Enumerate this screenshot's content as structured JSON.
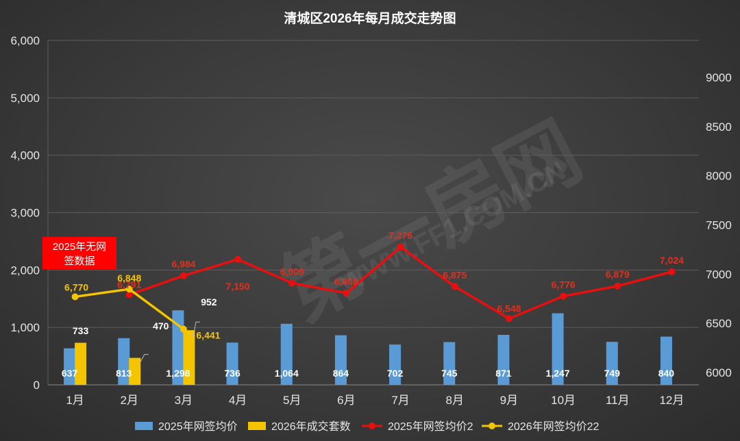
{
  "chart_data": {
    "type": "bar",
    "title": "清城区2026年每月成交走势图",
    "categories": [
      "1月",
      "2月",
      "3月",
      "4月",
      "5月",
      "6月",
      "7月",
      "8月",
      "9月",
      "10月",
      "11月",
      "12月"
    ],
    "left_axis": {
      "ylim": [
        0,
        6000
      ],
      "ticks": [
        "0",
        "1,000",
        "2,000",
        "3,000",
        "4,000",
        "5,000",
        "6,000"
      ],
      "tick_values": [
        0,
        1000,
        2000,
        3000,
        4000,
        5000,
        6000
      ]
    },
    "right_axis": {
      "ylim": [
        5875,
        9375
      ],
      "ticks": [
        "6000",
        "6500",
        "7000",
        "7500",
        "8000",
        "8500",
        "9000"
      ],
      "tick_values": [
        6000,
        6500,
        7000,
        7500,
        8000,
        8500,
        9000
      ]
    },
    "grid": true,
    "legend_position": "bottom",
    "series": [
      {
        "name": "2025年网签均价",
        "type": "bar",
        "axis": "left",
        "color": "#5b9bd5",
        "values": [
          637,
          813,
          1298,
          736,
          1064,
          864,
          702,
          745,
          871,
          1247,
          749,
          840
        ],
        "labels": [
          "637",
          "813",
          "1,298",
          "736",
          "1,064",
          "864",
          "702",
          "745",
          "871",
          "1,247",
          "749",
          "840"
        ]
      },
      {
        "name": "2026年成交套数",
        "type": "bar",
        "axis": "left",
        "color": "#f5c400",
        "values": [
          733,
          470,
          952,
          null,
          null,
          null,
          null,
          null,
          null,
          null,
          null,
          null
        ],
        "labels": [
          "733",
          "470",
          "952"
        ]
      },
      {
        "name": "2025年网签均价2",
        "type": "line",
        "axis": "right",
        "color": "#e8100f",
        "values": [
          null,
          6791,
          6984,
          7150,
          6909,
          6808,
          7276,
          6875,
          6548,
          6776,
          6879,
          7024
        ],
        "labels": [
          "",
          "6,791",
          "6,984",
          "7,150",
          "6,909",
          "6,808",
          "7,276",
          "6,875",
          "6,548",
          "6,776",
          "6,879",
          "7,024"
        ]
      },
      {
        "name": "2026年网签均价22",
        "type": "line",
        "axis": "right",
        "color": "#f5c400",
        "values": [
          6770,
          6848,
          6441,
          null,
          null,
          null,
          null,
          null,
          null,
          null,
          null,
          null
        ],
        "labels": [
          "6,770",
          "6,848",
          "6,441"
        ]
      }
    ],
    "annotations": [
      {
        "text_lines": [
          "2025年无网",
          "签数据"
        ],
        "bg": "#ff0000"
      }
    ]
  },
  "watermark": {
    "text1": "第一房网",
    "text2": "WWW.FF1.COM.CN"
  }
}
